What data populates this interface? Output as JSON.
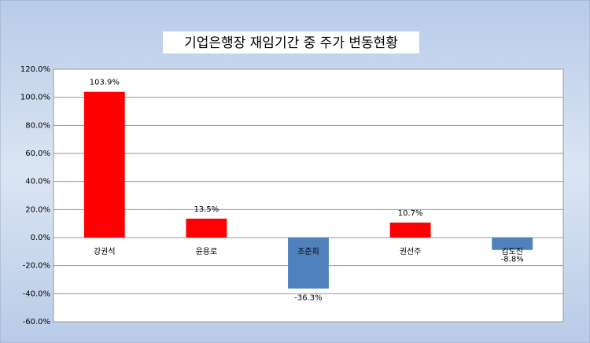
{
  "chart_data": {
    "type": "bar",
    "title": "기업은행장 재임기간 중 주가 변동현황",
    "categories": [
      "강권석",
      "윤용로",
      "조준희",
      "권선주",
      "김도진"
    ],
    "values": [
      103.9,
      13.5,
      -36.3,
      10.7,
      -8.8
    ],
    "value_labels": [
      "103.9%",
      "13.5%",
      "-36.3%",
      "10.7%",
      "-8.8%"
    ],
    "colors": [
      "#ff0000",
      "#ff0000",
      "#4f81bd",
      "#ff0000",
      "#4f81bd"
    ],
    "ylim": [
      -60,
      120
    ],
    "yticks": [
      {
        "value": -60,
        "label": "-60.0%"
      },
      {
        "value": -40,
        "label": "-40.0%"
      },
      {
        "value": -20,
        "label": "-20.0%"
      },
      {
        "value": 0,
        "label": "0.0%"
      },
      {
        "value": 20,
        "label": "20.0%"
      },
      {
        "value": 40,
        "label": "40.0%"
      },
      {
        "value": 60,
        "label": "60.0%"
      },
      {
        "value": 80,
        "label": "80.0%"
      },
      {
        "value": 100,
        "label": "100.0%"
      },
      {
        "value": 120,
        "label": "120.0%"
      }
    ],
    "grid": true
  }
}
